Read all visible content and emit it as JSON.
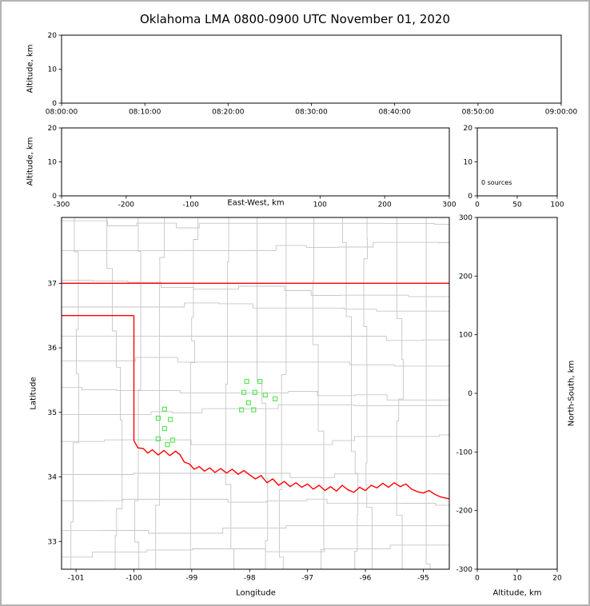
{
  "title": "Oklahoma LMA 0800-0900 UTC November 01, 2020",
  "style": {
    "background": "#ffffff",
    "frame_border": "#b4b4b4",
    "axis_color": "#000000",
    "state_border_color": "#ff0000",
    "county_line_color": "#c6c6c6",
    "marker_color": "#5de55d"
  },
  "chart_data": [
    {
      "id": "altitude-vs-time",
      "type": "scatter",
      "ylabel": "Altitude, km",
      "ylim": [
        0,
        20
      ],
      "yticks": [
        0,
        10,
        20
      ],
      "xtick_labels": [
        "08:00:00",
        "08:10:00",
        "08:20:00",
        "08:30:00",
        "08:40:00",
        "08:50:00",
        "09:00:00"
      ],
      "points": []
    },
    {
      "id": "altitude-vs-east-west",
      "type": "scatter",
      "xlabel": "East-West, km",
      "ylabel": "Altitude, km",
      "xlim": [
        -300,
        300
      ],
      "xticks": [
        -300,
        -200,
        -100,
        100,
        200,
        300
      ],
      "ylim": [
        0,
        20
      ],
      "yticks": [
        0,
        10,
        20
      ],
      "points": []
    },
    {
      "id": "altitude-source-histogram",
      "type": "line",
      "annotation": "0 sources",
      "xlim": [
        0,
        100
      ],
      "xticks": [
        0,
        50,
        100
      ],
      "ylim": [
        0,
        20
      ],
      "yticks": [
        0,
        10,
        20
      ],
      "points": []
    },
    {
      "id": "plan-view-map",
      "type": "scatter",
      "xlabel": "Longitude",
      "ylabel": "Latitude",
      "xlim": [
        -101.25,
        -94.55
      ],
      "ylim": [
        32.57,
        38.02
      ],
      "xticks": [
        -101,
        -100,
        -99,
        -98,
        -97,
        -96,
        -95
      ],
      "yticks": [
        33,
        34,
        35,
        36,
        37
      ],
      "markers": {
        "shape": "open-square",
        "color": "#5de55d",
        "points": [
          [
            -99.47,
            35.05
          ],
          [
            -99.58,
            34.91
          ],
          [
            -99.37,
            34.89
          ],
          [
            -99.47,
            34.75
          ],
          [
            -99.58,
            34.59
          ],
          [
            -99.33,
            34.57
          ],
          [
            -99.42,
            34.5
          ],
          [
            -98.05,
            35.48
          ],
          [
            -97.82,
            35.48
          ],
          [
            -98.1,
            35.31
          ],
          [
            -97.91,
            35.31
          ],
          [
            -97.73,
            35.27
          ],
          [
            -97.56,
            35.21
          ],
          [
            -98.02,
            35.15
          ],
          [
            -97.93,
            35.04
          ],
          [
            -98.14,
            35.04
          ]
        ]
      },
      "state_boundary": {
        "color": "#ff0000",
        "segments": [
          {
            "name": "kansas-oklahoma-border",
            "points": [
              [
                -101.25,
                37.0
              ],
              [
                -94.55,
                37.0
              ]
            ]
          },
          {
            "name": "panhandle-north-border",
            "points": [
              [
                -101.25,
                36.5
              ],
              [
                -100.0,
                36.5
              ]
            ]
          },
          {
            "name": "panhandle-east-border",
            "points": [
              [
                -100.0,
                36.5
              ],
              [
                -100.0,
                34.56
              ]
            ]
          },
          {
            "name": "red-river-border",
            "points": [
              [
                -100.0,
                34.56
              ],
              [
                -99.93,
                34.45
              ],
              [
                -99.84,
                34.44
              ],
              [
                -99.76,
                34.37
              ],
              [
                -99.68,
                34.42
              ],
              [
                -99.58,
                34.34
              ],
              [
                -99.48,
                34.41
              ],
              [
                -99.38,
                34.33
              ],
              [
                -99.28,
                34.4
              ],
              [
                -99.2,
                34.34
              ],
              [
                -99.13,
                34.23
              ],
              [
                -99.04,
                34.2
              ],
              [
                -98.96,
                34.12
              ],
              [
                -98.87,
                34.16
              ],
              [
                -98.78,
                34.09
              ],
              [
                -98.69,
                34.14
              ],
              [
                -98.6,
                34.07
              ],
              [
                -98.5,
                34.13
              ],
              [
                -98.4,
                34.06
              ],
              [
                -98.3,
                34.12
              ],
              [
                -98.2,
                34.04
              ],
              [
                -98.1,
                34.1
              ],
              [
                -98.0,
                34.03
              ],
              [
                -97.9,
                33.97
              ],
              [
                -97.8,
                34.02
              ],
              [
                -97.7,
                33.91
              ],
              [
                -97.6,
                33.97
              ],
              [
                -97.5,
                33.87
              ],
              [
                -97.4,
                33.93
              ],
              [
                -97.3,
                33.85
              ],
              [
                -97.2,
                33.91
              ],
              [
                -97.1,
                33.84
              ],
              [
                -97.0,
                33.89
              ],
              [
                -96.9,
                33.81
              ],
              [
                -96.8,
                33.87
              ],
              [
                -96.7,
                33.79
              ],
              [
                -96.6,
                33.85
              ],
              [
                -96.5,
                33.78
              ],
              [
                -96.4,
                33.87
              ],
              [
                -96.3,
                33.8
              ],
              [
                -96.2,
                33.76
              ],
              [
                -96.1,
                33.84
              ],
              [
                -96.0,
                33.79
              ],
              [
                -95.9,
                33.87
              ],
              [
                -95.8,
                33.83
              ],
              [
                -95.7,
                33.9
              ],
              [
                -95.6,
                33.84
              ],
              [
                -95.5,
                33.91
              ],
              [
                -95.4,
                33.85
              ],
              [
                -95.3,
                33.89
              ],
              [
                -95.2,
                33.81
              ],
              [
                -95.1,
                33.77
              ],
              [
                -95.0,
                33.75
              ],
              [
                -94.9,
                33.79
              ],
              [
                -94.8,
                33.73
              ],
              [
                -94.7,
                33.69
              ],
              [
                -94.6,
                33.67
              ],
              [
                -94.55,
                33.66
              ]
            ]
          }
        ]
      }
    },
    {
      "id": "north-south-vs-altitude",
      "type": "scatter",
      "xlabel": "Altitude, km",
      "ylabel": "North-South, km",
      "xlim": [
        0,
        20
      ],
      "xticks": [
        0,
        10,
        20
      ],
      "ylim": [
        -300,
        300
      ],
      "yticks": [
        -300,
        -200,
        -100,
        0,
        100,
        200,
        300
      ],
      "points": []
    }
  ]
}
